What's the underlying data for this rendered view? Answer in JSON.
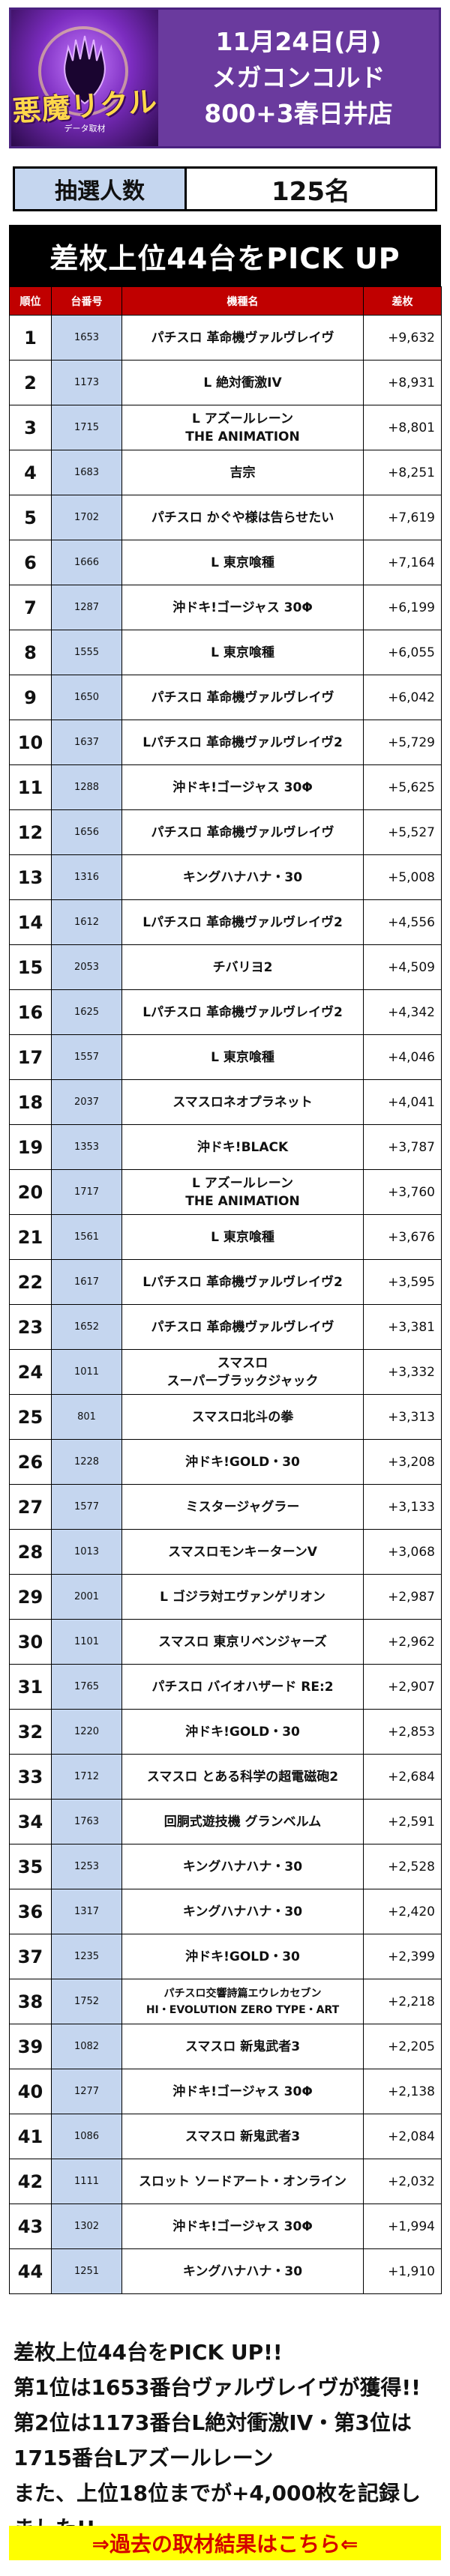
{
  "header": {
    "logo_title": "悪魔リクル",
    "logo_sub": "データ取材",
    "date": "11月24日(月)",
    "event": "メガコンコルド",
    "store": "800+3春日井店"
  },
  "count": {
    "label": "抽選人数",
    "value": "125名"
  },
  "table": {
    "banner": "差枚上位44台をPICK UP",
    "headers": [
      "順位",
      "台番号",
      "機種名",
      "差枚"
    ],
    "rows": [
      {
        "rank": "1",
        "num": "1653",
        "name": "パチスロ 革命機ヴァルヴレイヴ",
        "diff": "+9,632"
      },
      {
        "rank": "2",
        "num": "1173",
        "name": "L 絶対衝激IV",
        "diff": "+8,931"
      },
      {
        "rank": "3",
        "num": "1715",
        "name": "L アズールレーン\nTHE ANIMATION",
        "diff": "+8,801"
      },
      {
        "rank": "4",
        "num": "1683",
        "name": "吉宗",
        "diff": "+8,251"
      },
      {
        "rank": "5",
        "num": "1702",
        "name": "パチスロ かぐや様は告らせたい",
        "diff": "+7,619"
      },
      {
        "rank": "6",
        "num": "1666",
        "name": "L 東京喰種",
        "diff": "+7,164"
      },
      {
        "rank": "7",
        "num": "1287",
        "name": "沖ドキ!ゴージャス 30Φ",
        "diff": "+6,199"
      },
      {
        "rank": "8",
        "num": "1555",
        "name": "L 東京喰種",
        "diff": "+6,055"
      },
      {
        "rank": "9",
        "num": "1650",
        "name": "パチスロ 革命機ヴァルヴレイヴ",
        "diff": "+6,042"
      },
      {
        "rank": "10",
        "num": "1637",
        "name": "Lパチスロ 革命機ヴァルヴレイヴ2",
        "diff": "+5,729"
      },
      {
        "rank": "11",
        "num": "1288",
        "name": "沖ドキ!ゴージャス 30Φ",
        "diff": "+5,625"
      },
      {
        "rank": "12",
        "num": "1656",
        "name": "パチスロ 革命機ヴァルヴレイヴ",
        "diff": "+5,527"
      },
      {
        "rank": "13",
        "num": "1316",
        "name": "キングハナハナ・30",
        "diff": "+5,008"
      },
      {
        "rank": "14",
        "num": "1612",
        "name": "Lパチスロ 革命機ヴァルヴレイヴ2",
        "diff": "+4,556"
      },
      {
        "rank": "15",
        "num": "2053",
        "name": "チバリヨ2",
        "diff": "+4,509"
      },
      {
        "rank": "16",
        "num": "1625",
        "name": "Lパチスロ 革命機ヴァルヴレイヴ2",
        "diff": "+4,342"
      },
      {
        "rank": "17",
        "num": "1557",
        "name": "L 東京喰種",
        "diff": "+4,046"
      },
      {
        "rank": "18",
        "num": "2037",
        "name": "スマスロネオプラネット",
        "diff": "+4,041"
      },
      {
        "rank": "19",
        "num": "1353",
        "name": "沖ドキ!BLACK",
        "diff": "+3,787"
      },
      {
        "rank": "20",
        "num": "1717",
        "name": "L アズールレーン\nTHE ANIMATION",
        "diff": "+3,760"
      },
      {
        "rank": "21",
        "num": "1561",
        "name": "L 東京喰種",
        "diff": "+3,676"
      },
      {
        "rank": "22",
        "num": "1617",
        "name": "Lパチスロ 革命機ヴァルヴレイヴ2",
        "diff": "+3,595"
      },
      {
        "rank": "23",
        "num": "1652",
        "name": "パチスロ 革命機ヴァルヴレイヴ",
        "diff": "+3,381"
      },
      {
        "rank": "24",
        "num": "1011",
        "name": "スマスロ\nスーパーブラックジャック",
        "diff": "+3,332"
      },
      {
        "rank": "25",
        "num": "801",
        "name": "スマスロ北斗の拳",
        "diff": "+3,313"
      },
      {
        "rank": "26",
        "num": "1228",
        "name": "沖ドキ!GOLD・30",
        "diff": "+3,208"
      },
      {
        "rank": "27",
        "num": "1577",
        "name": "ミスタージャグラー",
        "diff": "+3,133"
      },
      {
        "rank": "28",
        "num": "1013",
        "name": "スマスロモンキーターンV",
        "diff": "+3,068"
      },
      {
        "rank": "29",
        "num": "2001",
        "name": "L ゴジラ対エヴァンゲリオン",
        "diff": "+2,987"
      },
      {
        "rank": "30",
        "num": "1101",
        "name": "スマスロ 東京リベンジャーズ",
        "diff": "+2,962"
      },
      {
        "rank": "31",
        "num": "1765",
        "name": "パチスロ バイオハザード RE:2",
        "diff": "+2,907"
      },
      {
        "rank": "32",
        "num": "1220",
        "name": "沖ドキ!GOLD・30",
        "diff": "+2,853"
      },
      {
        "rank": "33",
        "num": "1712",
        "name": "スマスロ とある科学の超電磁砲2",
        "diff": "+2,684"
      },
      {
        "rank": "34",
        "num": "1763",
        "name": "回胴式遊技機 グランベルム",
        "diff": "+2,591"
      },
      {
        "rank": "35",
        "num": "1253",
        "name": "キングハナハナ・30",
        "diff": "+2,528"
      },
      {
        "rank": "36",
        "num": "1317",
        "name": "キングハナハナ・30",
        "diff": "+2,420"
      },
      {
        "rank": "37",
        "num": "1235",
        "name": "沖ドキ!GOLD・30",
        "diff": "+2,399"
      },
      {
        "rank": "38",
        "num": "1752",
        "name": "パチスロ交響詩篇エウレカセブン\nHI・EVOLUTION ZERO TYPE・ART",
        "diff": "+2,218",
        "small": true
      },
      {
        "rank": "39",
        "num": "1082",
        "name": "スマスロ 新鬼武者3",
        "diff": "+2,205"
      },
      {
        "rank": "40",
        "num": "1277",
        "name": "沖ドキ!ゴージャス 30Φ",
        "diff": "+2,138"
      },
      {
        "rank": "41",
        "num": "1086",
        "name": "スマスロ 新鬼武者3",
        "diff": "+2,084"
      },
      {
        "rank": "42",
        "num": "1111",
        "name": "スロット ソードアート・オンライン",
        "diff": "+2,032"
      },
      {
        "rank": "43",
        "num": "1302",
        "name": "沖ドキ!ゴージャス 30Φ",
        "diff": "+1,994"
      },
      {
        "rank": "44",
        "num": "1251",
        "name": "キングハナハナ・30",
        "diff": "+1,910"
      }
    ]
  },
  "summary": "差枚上位44台をPICK UP!!\n第1位は1653番台ヴァルヴレイヴが獲得!!\n第2位は1173番台L絶対衝激IV・第3位は\n1715番台Lアズールレーン\nまた、上位18位までが+4,000枚を記録しました!!",
  "link": "⇒過去の取材結果はこちら⇐"
}
